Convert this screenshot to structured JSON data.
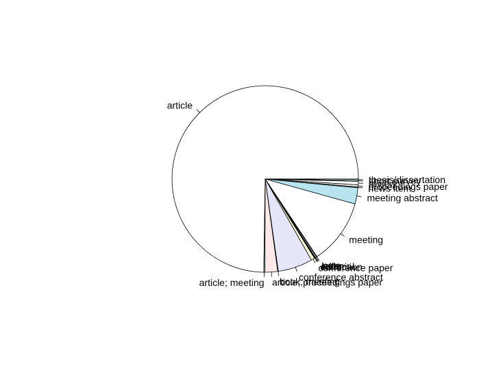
{
  "chart_data": {
    "type": "pie",
    "title": "",
    "direction": "counterclockwise",
    "start_angle_deg": 0,
    "slices": [
      {
        "label": "article",
        "value": 74.6,
        "color": "#ffffff"
      },
      {
        "label": "article; meeting",
        "value": 0.2,
        "color": "#b7e4ef"
      },
      {
        "label": "article; proceedings paper",
        "value": 2.2,
        "color": "#ffe8e8"
      },
      {
        "label": "book; meeting",
        "value": 0.1,
        "color": "#ffffff"
      },
      {
        "label": "conference abstract",
        "value": 6.0,
        "color": "#e6e6fa"
      },
      {
        "label": "conference paper",
        "value": 0.6,
        "color": "#ffffe0"
      },
      {
        "label": "correction",
        "value": 0.1,
        "color": "#ffffff"
      },
      {
        "label": "editorial",
        "value": 0.1,
        "color": "#ffffff"
      },
      {
        "label": "letter",
        "value": 0.2,
        "color": "#ffffff"
      },
      {
        "label": "note",
        "value": 0.1,
        "color": "#ffffff"
      },
      {
        "label": "meeting",
        "value": 11.3,
        "color": "#ffffff"
      },
      {
        "label": "meeting abstract",
        "value": 2.8,
        "color": "#b7e4ef"
      },
      {
        "label": "news item",
        "value": 0.15,
        "color": "#ffffff"
      },
      {
        "label": "proceedings paper",
        "value": 0.35,
        "color": "#ffffff"
      },
      {
        "label": "review",
        "value": 0.6,
        "color": "#ffffff"
      },
      {
        "label": "short survey",
        "value": 0.2,
        "color": "#ffffff"
      },
      {
        "label": "thesis/dissertation",
        "value": 0.2,
        "color": "#b7e4ef"
      }
    ]
  }
}
